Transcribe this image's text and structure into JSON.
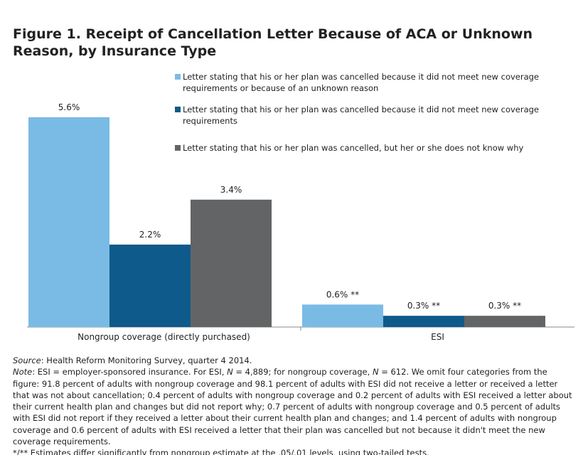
{
  "chart_data": {
    "type": "bar",
    "title": "Figure 1. Receipt of Cancellation Letter Because of ACA or Unknown Reason, by Insurance Type",
    "categories": [
      "Nongroup coverage (directly purchased)",
      "ESI"
    ],
    "series": [
      {
        "name": "Letter stating that his or her plan was cancelled because it did not meet new coverage requirements or because of an unknown reason",
        "color": "#7abbe5",
        "values": [
          5.6,
          0.6
        ],
        "value_labels": [
          "5.6%",
          "0.6% **"
        ]
      },
      {
        "name": "Letter stating that his or her plan was cancelled because it did not meet new coverage requirements",
        "color": "#0e5a8a",
        "values": [
          2.2,
          0.3
        ],
        "value_labels": [
          "2.2%",
          "0.3% **"
        ]
      },
      {
        "name": "Letter stating that his or her plan was cancelled, but her or she does not know why",
        "color": "#636466",
        "values": [
          3.4,
          0.3
        ],
        "value_labels": [
          "3.4%",
          "0.3% **"
        ]
      }
    ]
  },
  "notes": {
    "source": [
      "Source",
      ": Health Reform Monitoring Survey, quarter 4 2014."
    ],
    "note": [
      "Note",
      ": ESI = employer-sponsored insurance. For ESI, ",
      "N",
      " = 4,889; for nongroup coverage, ",
      "N",
      " = 612. We omit four categories from the figure: 91.8 percent of adults with nongroup coverage and 98.1 percent of adults with ESI did not receive a letter or received a letter that was not about cancellation; 0.4 percent of adults with nongroup coverage and 0.2 percent of adults with ESI received a letter about their current health plan and changes but did not report why; 0.7 percent of adults with nongroup coverage and 0.5 percent of adults with ESI did not report if they received a letter about their current health plan and changes; and 1.4 percent of adults with nongroup coverage and 0.6 percent of adults with ESI received a letter that their plan was cancelled but not because it didn't meet the new coverage requirements."
    ],
    "significance": "*/** Estimates differ significantly from nongroup estimate at the .05/.01 levels, using two-tailed tests."
  }
}
